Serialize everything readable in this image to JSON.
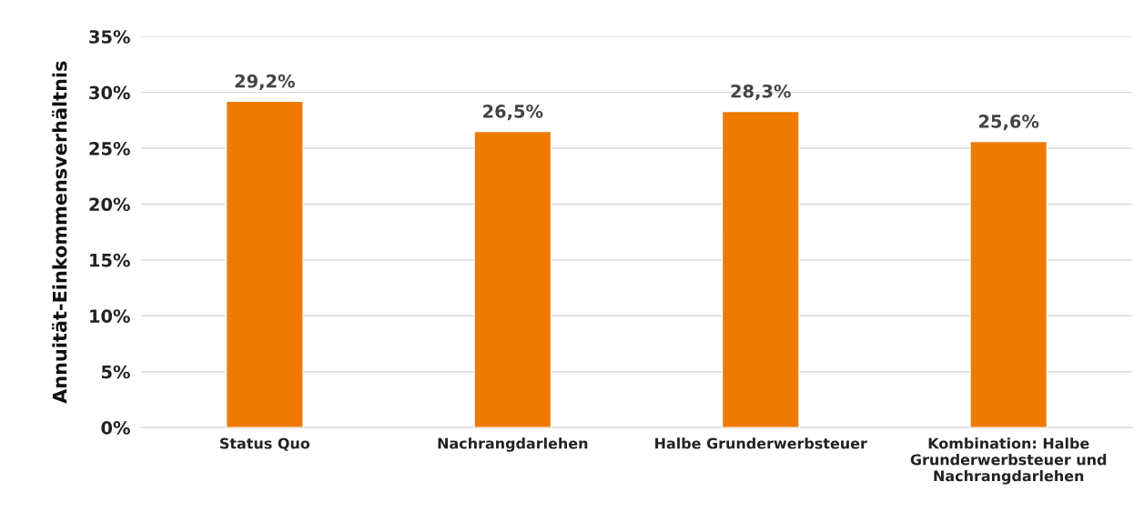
{
  "chart_data": {
    "type": "bar",
    "ylabel": "Annuität-Einkommensverhältnis",
    "categories": [
      "Status Quo",
      "Nachrangdarlehen",
      "Halbe Grunderwerbsteuer",
      "Kombination: Halbe\nGrunderwerbsteuer und\nNachrangdarlehen"
    ],
    "values": [
      29.2,
      26.5,
      28.3,
      25.6
    ],
    "value_labels": [
      "29,2%",
      "26,5%",
      "28,3%",
      "25,6%"
    ],
    "color": "#ee7b00",
    "ylim": [
      0,
      35
    ],
    "yticks": [
      {
        "value": 0,
        "label": "0%"
      },
      {
        "value": 5,
        "label": "5%"
      },
      {
        "value": 10,
        "label": "10%"
      },
      {
        "value": 15,
        "label": "15%"
      },
      {
        "value": 20,
        "label": "20%"
      },
      {
        "value": 25,
        "label": "25%"
      },
      {
        "value": 30,
        "label": "30%"
      },
      {
        "value": 35,
        "label": "35%"
      }
    ],
    "grid": "y",
    "legend": false
  }
}
